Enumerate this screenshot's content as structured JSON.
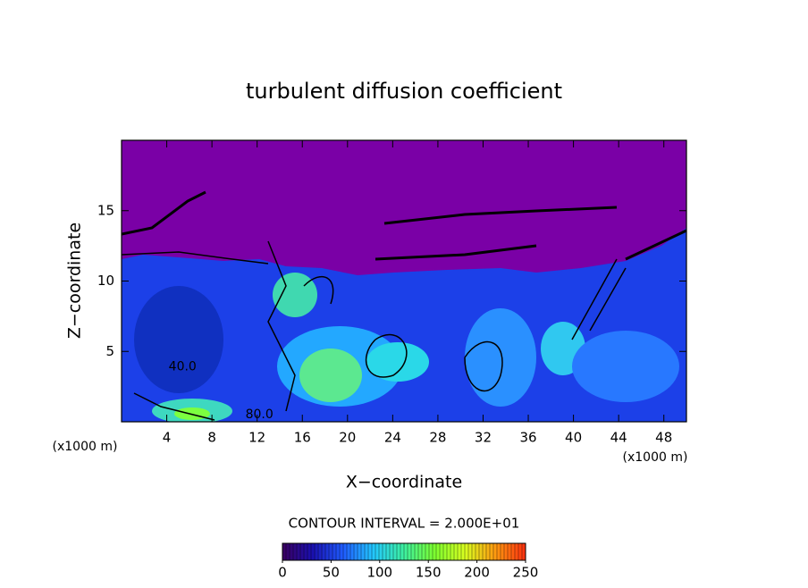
{
  "chart_data": {
    "type": "contour",
    "title": "turbulent diffusion coefficient",
    "xlabel": "X−coordinate",
    "ylabel": "Z−coordinate",
    "x_units": "(x1000 m)",
    "y_units": "(x1000 m)",
    "xlim": [
      0,
      50
    ],
    "ylim": [
      0,
      20
    ],
    "xticks": [
      4,
      8,
      12,
      16,
      20,
      24,
      28,
      32,
      36,
      40,
      44,
      48
    ],
    "yticks": [
      5,
      10,
      15
    ],
    "annotations": [
      {
        "text": "40.0",
        "x": 5.4,
        "y": 3.9
      },
      {
        "text": "80.0",
        "x": 12.2,
        "y": 0.5
      }
    ],
    "contour_interval_label": "CONTOUR INTERVAL = 2.000E+01",
    "colorbar": {
      "lim": [
        0,
        250
      ],
      "ticks": [
        0,
        50,
        100,
        150,
        200,
        250
      ],
      "colors": [
        "#3a0060",
        "#1a10b0",
        "#1f5cff",
        "#23c8ff",
        "#3df0a0",
        "#7cff30",
        "#d8ff20",
        "#ff9a10",
        "#ff3010"
      ]
    }
  }
}
